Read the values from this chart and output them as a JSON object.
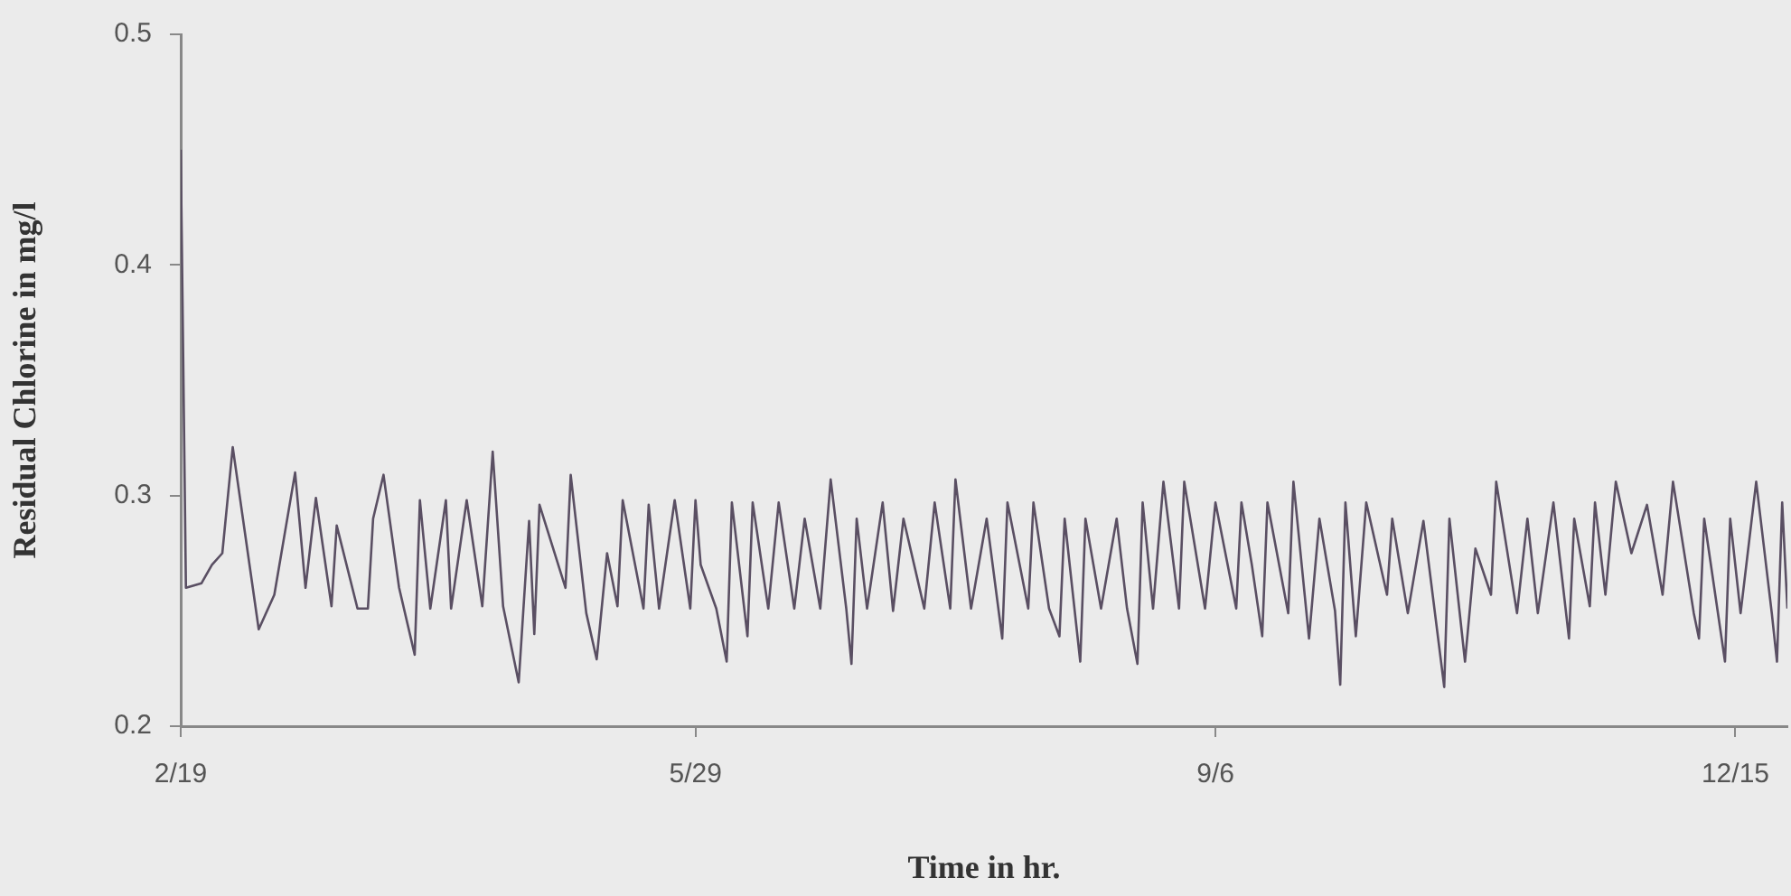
{
  "chart_data": {
    "type": "line",
    "xlabel": "Time in hr.",
    "ylabel": "Residual Chlorine in mg/l",
    "xlim": [
      "--02-19",
      "--12-25"
    ],
    "ylim": [
      0.2,
      0.5
    ],
    "xticks": [
      {
        "value": "--02-19",
        "label": "2/19"
      },
      {
        "value": "--05-29",
        "label": "5/29"
      },
      {
        "value": "--09-06",
        "label": "9/6"
      },
      {
        "value": "--12-15",
        "label": "12/15"
      }
    ],
    "yticks": [
      0.2,
      0.3,
      0.4,
      0.5
    ],
    "marker": "none",
    "legend": false,
    "series": [
      {
        "color": "#5a4f63",
        "x": [
          "--02-19",
          "--02-20",
          "--02-23",
          "--02-25",
          "--02-27",
          "--03-01",
          "--03-06",
          "--03-09",
          "--03-13",
          "--03-15",
          "--03-17",
          "--03-20",
          "--03-21",
          "--03-25",
          "--03-27",
          "--03-28",
          "--03-30",
          "--04-02",
          "--04-05",
          "--04-06",
          "--04-08",
          "--04-11",
          "--04-12",
          "--04-15",
          "--04-18",
          "--04-20",
          "--04-22",
          "--04-25",
          "--04-27",
          "--04-28",
          "--04-29",
          "--05-04",
          "--05-05",
          "--05-08",
          "--05-10",
          "--05-12",
          "--05-14",
          "--05-15",
          "--05-19",
          "--05-20",
          "--05-22",
          "--05-25",
          "--05-28",
          "--05-29",
          "--05-30",
          "--06-02",
          "--06-04",
          "--06-05",
          "--06-08",
          "--06-09",
          "--06-12",
          "--06-14",
          "--06-17",
          "--06-19",
          "--06-22",
          "--06-24",
          "--06-27",
          "--06-28",
          "--06-29",
          "--07-01",
          "--07-04",
          "--07-06",
          "--07-08",
          "--07-12",
          "--07-14",
          "--07-17",
          "--07-18",
          "--07-21",
          "--07-24",
          "--07-27",
          "--07-28",
          "--08-01",
          "--08-02",
          "--08-05",
          "--08-07",
          "--08-08",
          "--08-11",
          "--08-12",
          "--08-15",
          "--08-18",
          "--08-20",
          "--08-22",
          "--08-23",
          "--08-25",
          "--08-27",
          "--08-30",
          "--08-31",
          "--09-04",
          "--09-06",
          "--09-10",
          "--09-11",
          "--09-13",
          "--09-15",
          "--09-16",
          "--09-20",
          "--09-21",
          "--09-24",
          "--09-26",
          "--09-29",
          "--09-30",
          "--10-01",
          "--10-03",
          "--10-05",
          "--10-09",
          "--10-10",
          "--10-13",
          "--10-16",
          "--10-20",
          "--10-21",
          "--10-24",
          "--10-26",
          "--10-29",
          "--10-30",
          "--11-03",
          "--11-05",
          "--11-07",
          "--11-10",
          "--11-13",
          "--11-14",
          "--11-17",
          "--11-18",
          "--11-20",
          "--11-22",
          "--11-25",
          "--11-28",
          "--12-01",
          "--12-03",
          "--12-07",
          "--12-08",
          "--12-09",
          "--12-13",
          "--12-14",
          "--12-16",
          "--12-19",
          "--12-22",
          "--12-23",
          "--12-24",
          "--12-25"
        ],
        "values": [
          0.45,
          0.26,
          0.262,
          0.27,
          0.275,
          0.321,
          0.242,
          0.257,
          0.31,
          0.26,
          0.299,
          0.252,
          0.287,
          0.251,
          0.251,
          0.29,
          0.309,
          0.26,
          0.231,
          0.298,
          0.251,
          0.298,
          0.251,
          0.298,
          0.252,
          0.319,
          0.252,
          0.219,
          0.289,
          0.24,
          0.296,
          0.26,
          0.309,
          0.249,
          0.229,
          0.275,
          0.252,
          0.298,
          0.251,
          0.296,
          0.251,
          0.298,
          0.251,
          0.298,
          0.27,
          0.251,
          0.228,
          0.297,
          0.239,
          0.297,
          0.251,
          0.297,
          0.251,
          0.29,
          0.251,
          0.307,
          0.251,
          0.227,
          0.29,
          0.251,
          0.297,
          0.25,
          0.29,
          0.251,
          0.297,
          0.251,
          0.307,
          0.251,
          0.29,
          0.238,
          0.297,
          0.251,
          0.297,
          0.251,
          0.239,
          0.29,
          0.228,
          0.29,
          0.251,
          0.29,
          0.251,
          0.227,
          0.297,
          0.251,
          0.306,
          0.251,
          0.306,
          0.251,
          0.297,
          0.251,
          0.297,
          0.27,
          0.239,
          0.297,
          0.249,
          0.306,
          0.238,
          0.29,
          0.25,
          0.218,
          0.297,
          0.239,
          0.297,
          0.257,
          0.29,
          0.249,
          0.289,
          0.217,
          0.29,
          0.228,
          0.277,
          0.257,
          0.306,
          0.249,
          0.29,
          0.249,
          0.297,
          0.238,
          0.29,
          0.252,
          0.297,
          0.257,
          0.306,
          0.275,
          0.296,
          0.257,
          0.306,
          0.249,
          0.238,
          0.29,
          0.228,
          0.29,
          0.249,
          0.306,
          0.249,
          0.228,
          0.297,
          0.251
        ]
      }
    ]
  }
}
